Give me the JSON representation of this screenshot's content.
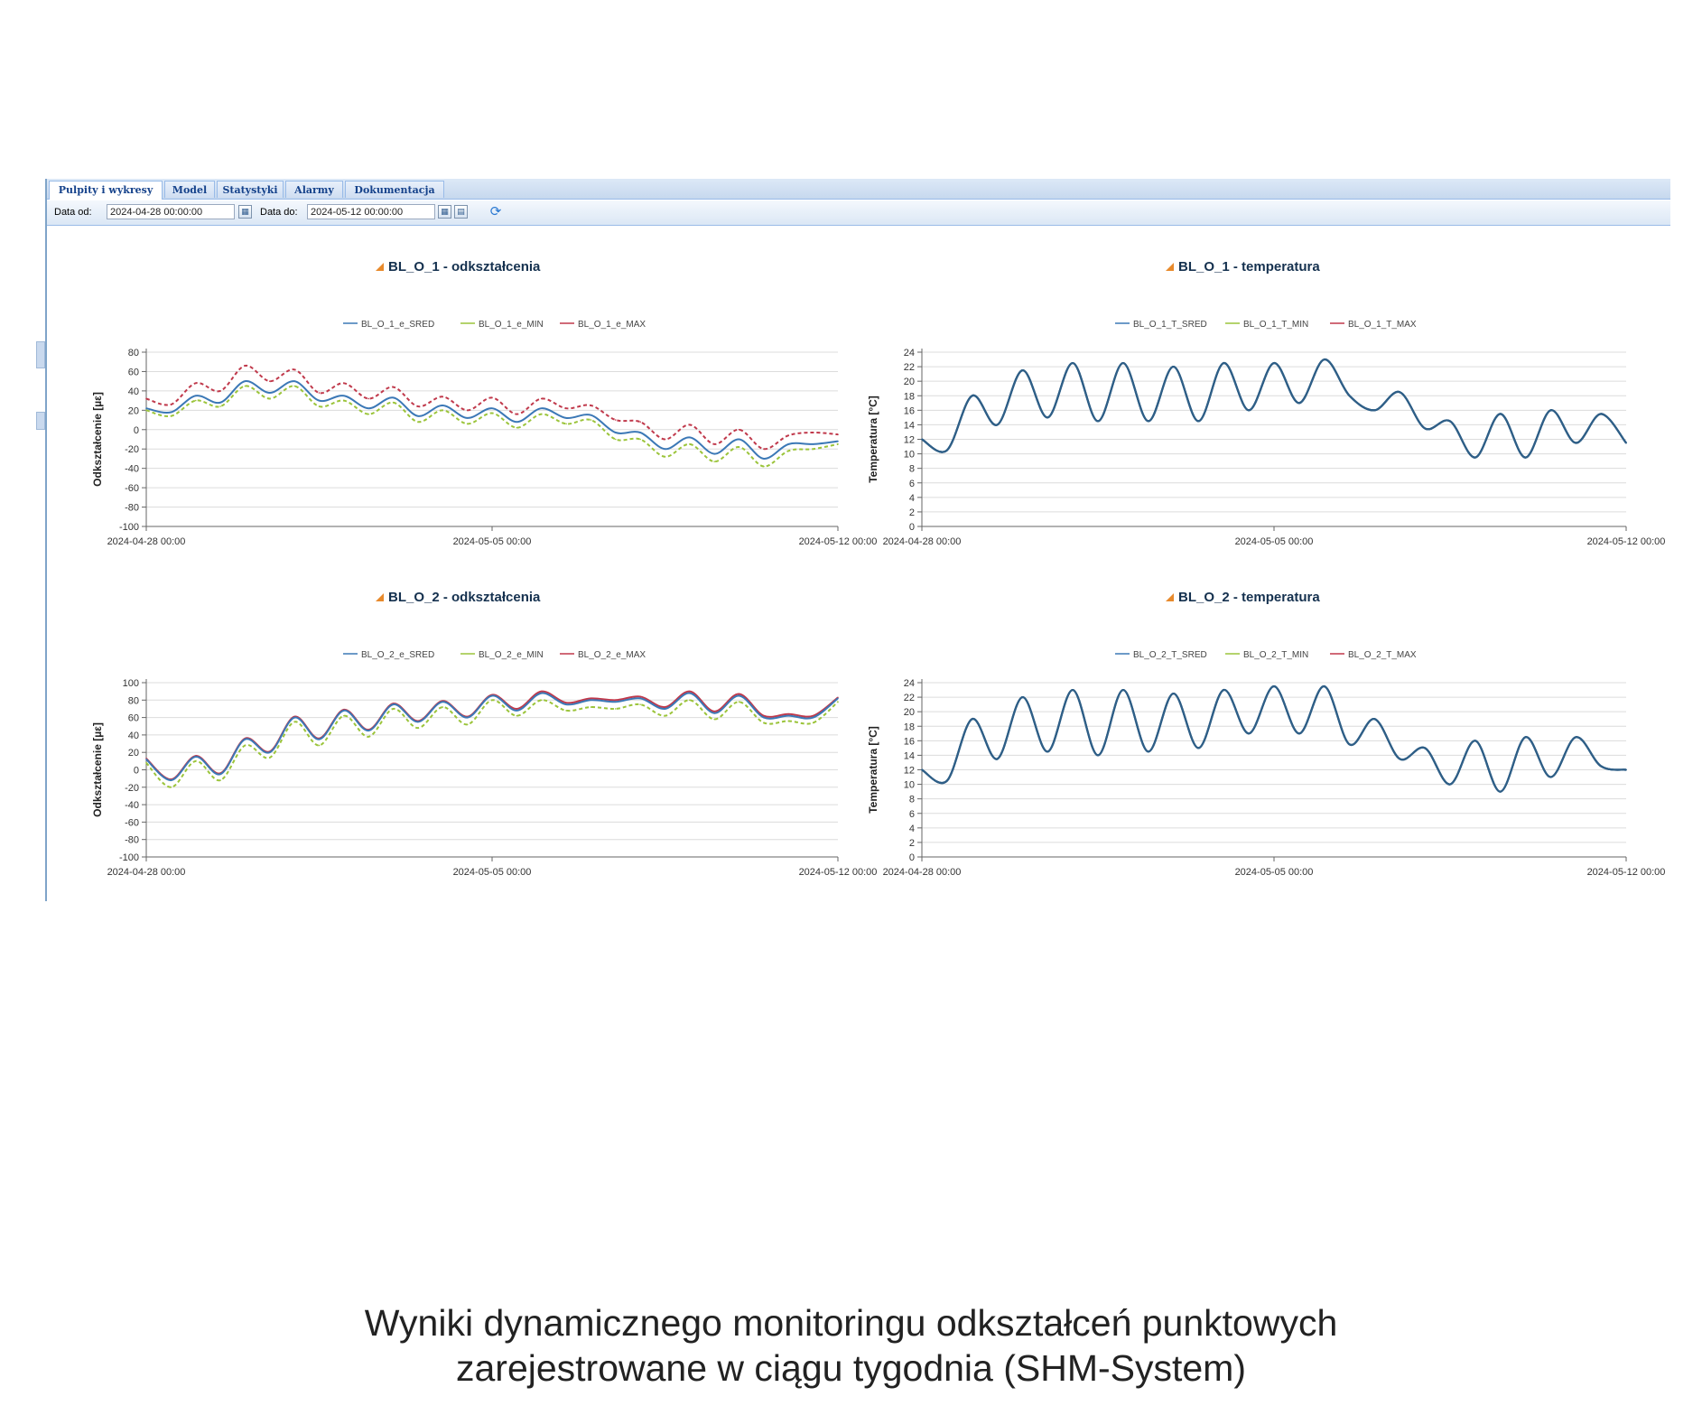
{
  "tabs": [
    {
      "label": "Pulpity i wykresy",
      "active": true
    },
    {
      "label": "Model",
      "active": false
    },
    {
      "label": "Statystyki",
      "active": false
    },
    {
      "label": "Alarmy",
      "active": false
    },
    {
      "label": "Dokumentacja",
      "active": false
    }
  ],
  "toolbar": {
    "date_from_label": "Data od:",
    "date_from_value": "2024-04-28 00:00:00",
    "date_to_label": "Data do:",
    "date_to_value": "2024-05-12 00:00:00"
  },
  "caption": {
    "line1": "Wyniki dynamicznego monitoringu odkształceń punktowych",
    "line2": "zarejestrowane w ciągu tygodnia (SHM-System)"
  },
  "colors": {
    "sred": "#3b78b6",
    "min": "#9bc43a",
    "max": "#c0394b",
    "single": "#2f5f87"
  },
  "chart_data": [
    {
      "type": "line",
      "title": "BL_O_1 - odkształcenia",
      "ylabel": "Odkształcenie [µε]",
      "ylim": [
        -100,
        80
      ],
      "yticks": [
        80,
        60,
        40,
        20,
        0,
        -20,
        -40,
        -60,
        -80,
        -100
      ],
      "xticks": [
        "2024-04-28 00:00",
        "2024-05-05 00:00",
        "2024-05-12 00:00"
      ],
      "x_days": [
        0,
        0.5,
        1,
        1.5,
        2,
        2.5,
        3,
        3.5,
        4,
        4.5,
        5,
        5.5,
        6,
        6.5,
        7,
        7.5,
        8,
        8.5,
        9,
        9.5,
        10,
        10.5,
        11,
        11.5,
        12,
        12.5,
        13,
        13.5,
        14
      ],
      "series": [
        {
          "name": "BL_O_1_e_SRED",
          "style": "solid",
          "values": [
            22,
            18,
            35,
            28,
            50,
            38,
            50,
            30,
            35,
            22,
            33,
            14,
            25,
            12,
            22,
            8,
            22,
            12,
            15,
            -3,
            -3,
            -20,
            -8,
            -25,
            -10,
            -30,
            -15,
            -15,
            -12
          ]
        },
        {
          "name": "BL_O_1_e_MIN",
          "style": "dashed",
          "values": [
            20,
            14,
            30,
            24,
            45,
            32,
            45,
            24,
            30,
            16,
            28,
            8,
            20,
            6,
            17,
            2,
            16,
            6,
            10,
            -10,
            -10,
            -28,
            -15,
            -33,
            -18,
            -38,
            -22,
            -20,
            -15
          ]
        },
        {
          "name": "BL_O_1_e_MAX",
          "style": "dashed",
          "values": [
            32,
            26,
            48,
            40,
            66,
            50,
            62,
            38,
            48,
            32,
            44,
            24,
            34,
            20,
            33,
            16,
            32,
            22,
            25,
            10,
            8,
            -10,
            5,
            -15,
            0,
            -20,
            -6,
            -3,
            -5
          ]
        }
      ]
    },
    {
      "type": "line",
      "title": "BL_O_1 - temperatura",
      "ylabel": "Temperatura [°C]",
      "ylim": [
        0,
        24
      ],
      "yticks": [
        24,
        22,
        20,
        18,
        16,
        14,
        12,
        10,
        8,
        6,
        4,
        2,
        0
      ],
      "xticks": [
        "2024-04-28 00:00",
        "2024-05-05 00:00",
        "2024-05-12 00:00"
      ],
      "x_days": [
        0,
        0.5,
        1,
        1.5,
        2,
        2.5,
        3,
        3.5,
        4,
        4.5,
        5,
        5.5,
        6,
        6.5,
        7,
        7.5,
        8,
        8.5,
        9,
        9.5,
        10,
        10.5,
        11,
        11.5,
        12,
        12.5,
        13,
        13.5,
        14
      ],
      "series": [
        {
          "name": "BL_O_1_T_SRED",
          "style": "solid",
          "values": [
            12,
            10.5,
            18,
            14,
            21.5,
            15,
            22.5,
            14.5,
            22.5,
            14.5,
            22,
            14.5,
            22.5,
            16,
            22.5,
            17,
            23,
            18,
            16,
            18.5,
            13.5,
            14.5,
            9.5,
            15.5,
            9.5,
            16,
            11.5,
            15.5,
            11.5
          ]
        },
        {
          "name": "BL_O_1_T_MIN",
          "style": "solid",
          "values": [
            12,
            10.5,
            18,
            14,
            21.5,
            15,
            22.5,
            14.5,
            22.5,
            14.5,
            22,
            14.5,
            22.5,
            16,
            22.5,
            17,
            23,
            18,
            16,
            18.5,
            13.5,
            14.5,
            9.5,
            15.5,
            9.5,
            16,
            11.5,
            15.5,
            11.5
          ]
        },
        {
          "name": "BL_O_1_T_MAX",
          "style": "solid",
          "values": [
            12,
            10.5,
            18,
            14,
            21.5,
            15,
            22.5,
            14.5,
            22.5,
            14.5,
            22,
            14.5,
            22.5,
            16,
            22.5,
            17,
            23,
            18,
            16,
            18.5,
            13.5,
            14.5,
            9.5,
            15.5,
            9.5,
            16,
            11.5,
            15.5,
            11.5
          ]
        }
      ]
    },
    {
      "type": "line",
      "title": "BL_O_2 - odkształcenia",
      "ylabel": "Odkształcenie [µε]",
      "ylim": [
        -100,
        100
      ],
      "yticks": [
        100,
        80,
        60,
        40,
        20,
        0,
        -20,
        -40,
        -60,
        -80,
        -100
      ],
      "xticks": [
        "2024-04-28 00:00",
        "2024-05-05 00:00",
        "2024-05-12 00:00"
      ],
      "x_days": [
        0,
        0.5,
        1,
        1.5,
        2,
        2.5,
        3,
        3.5,
        4,
        4.5,
        5,
        5.5,
        6,
        6.5,
        7,
        7.5,
        8,
        8.5,
        9,
        9.5,
        10,
        10.5,
        11,
        11.5,
        12,
        12.5,
        13,
        13.5,
        14
      ],
      "series": [
        {
          "name": "BL_O_2_e_SRED",
          "style": "solid",
          "values": [
            12,
            -12,
            15,
            -5,
            35,
            20,
            60,
            35,
            68,
            45,
            75,
            55,
            78,
            60,
            85,
            68,
            88,
            75,
            80,
            78,
            82,
            70,
            88,
            65,
            85,
            60,
            62,
            60,
            82
          ]
        },
        {
          "name": "BL_O_2_e_MIN",
          "style": "dashed",
          "values": [
            8,
            -20,
            10,
            -12,
            28,
            14,
            55,
            28,
            62,
            38,
            70,
            48,
            72,
            52,
            80,
            62,
            80,
            68,
            72,
            70,
            75,
            62,
            80,
            58,
            78,
            54,
            56,
            54,
            78
          ]
        },
        {
          "name": "BL_O_2_e_MAX",
          "style": "solid",
          "values": [
            13,
            -11,
            16,
            -4,
            36,
            21,
            61,
            36,
            69,
            46,
            76,
            56,
            79,
            61,
            86,
            70,
            90,
            77,
            82,
            80,
            84,
            72,
            90,
            67,
            87,
            62,
            64,
            62,
            83
          ]
        }
      ]
    },
    {
      "type": "line",
      "title": "BL_O_2 - temperatura",
      "ylabel": "Temperatura [°C]",
      "ylim": [
        0,
        24
      ],
      "yticks": [
        24,
        22,
        20,
        18,
        16,
        14,
        12,
        10,
        8,
        6,
        4,
        2,
        0
      ],
      "xticks": [
        "2024-04-28 00:00",
        "2024-05-05 00:00",
        "2024-05-12 00:00"
      ],
      "x_days": [
        0,
        0.5,
        1,
        1.5,
        2,
        2.5,
        3,
        3.5,
        4,
        4.5,
        5,
        5.5,
        6,
        6.5,
        7,
        7.5,
        8,
        8.5,
        9,
        9.5,
        10,
        10.5,
        11,
        11.5,
        12,
        12.5,
        13,
        13.5,
        14
      ],
      "series": [
        {
          "name": "BL_O_2_T_SRED",
          "style": "solid",
          "values": [
            12,
            10.5,
            19,
            13.5,
            22,
            14.5,
            23,
            14,
            23,
            14.5,
            22.5,
            15,
            23,
            17,
            23.5,
            17,
            23.5,
            15.5,
            19,
            13.5,
            15,
            10,
            16,
            9,
            16.5,
            11,
            16.5,
            12.5,
            12
          ]
        },
        {
          "name": "BL_O_2_T_MIN",
          "style": "solid",
          "values": [
            12,
            10.5,
            19,
            13.5,
            22,
            14.5,
            23,
            14,
            23,
            14.5,
            22.5,
            15,
            23,
            17,
            23.5,
            17,
            23.5,
            15.5,
            19,
            13.5,
            15,
            10,
            16,
            9,
            16.5,
            11,
            16.5,
            12.5,
            12
          ]
        },
        {
          "name": "BL_O_2_T_MAX",
          "style": "solid",
          "values": [
            12,
            10.5,
            19,
            13.5,
            22,
            14.5,
            23,
            14,
            23,
            14.5,
            22.5,
            15,
            23,
            17,
            23.5,
            17,
            23.5,
            15.5,
            19,
            13.5,
            15,
            10,
            16,
            9,
            16.5,
            11,
            16.5,
            12.5,
            12
          ]
        }
      ]
    }
  ]
}
